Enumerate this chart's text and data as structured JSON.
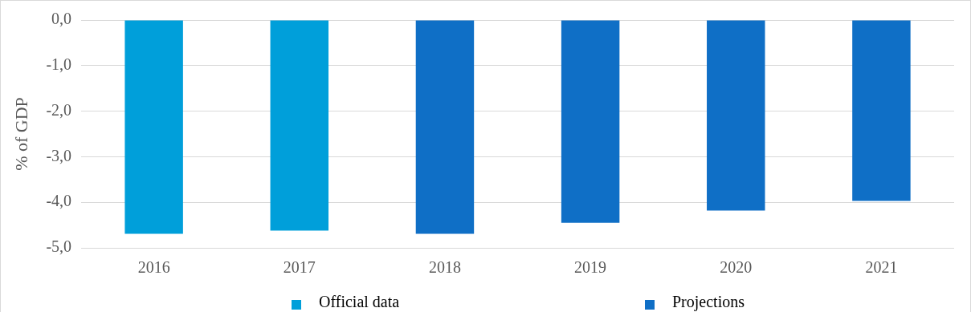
{
  "chart_data": {
    "type": "bar",
    "ylabel": "% of GDP",
    "categories": [
      "2016",
      "2017",
      "2018",
      "2019",
      "2020",
      "2021"
    ],
    "series": [
      {
        "name": "Official data",
        "color": "#009fda",
        "values": [
          -4.69,
          -4.62,
          null,
          null,
          null,
          null
        ]
      },
      {
        "name": "Projections",
        "color": "#0f6fc6",
        "values": [
          null,
          null,
          -4.69,
          -4.45,
          -4.18,
          -3.97
        ]
      }
    ],
    "ylim": [
      -5,
      0
    ],
    "yticks": [
      {
        "value": 0,
        "label": "0,0"
      },
      {
        "value": -1,
        "label": "-1,0"
      },
      {
        "value": -2,
        "label": "-2,0"
      },
      {
        "value": -3,
        "label": "-3,0"
      },
      {
        "value": -4,
        "label": "-4,0"
      },
      {
        "value": -5,
        "label": "-5,0"
      }
    ],
    "grid": "y",
    "legend": "bottom"
  }
}
